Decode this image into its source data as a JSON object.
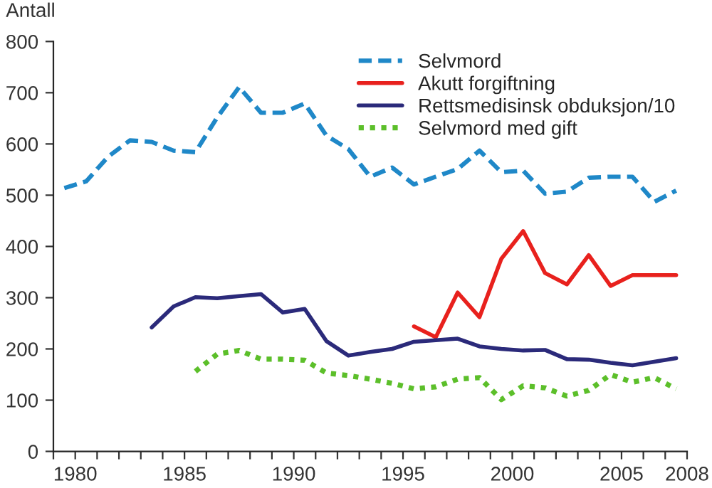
{
  "chart_data": {
    "type": "line",
    "ylabel": "Antall",
    "xlim": [
      1979,
      2008
    ],
    "ylim": [
      0,
      800
    ],
    "xticks": [
      {
        "value": 1979,
        "label": null
      },
      1980,
      {
        "value": 1981,
        "label": null
      },
      {
        "value": 1982,
        "label": null
      },
      {
        "value": 1983,
        "label": null
      },
      {
        "value": 1984,
        "label": null
      },
      1985,
      {
        "value": 1986,
        "label": null
      },
      {
        "value": 1987,
        "label": null
      },
      {
        "value": 1988,
        "label": null
      },
      {
        "value": 1989,
        "label": null
      },
      1990,
      {
        "value": 1991,
        "label": null
      },
      {
        "value": 1992,
        "label": null
      },
      {
        "value": 1993,
        "label": null
      },
      {
        "value": 1994,
        "label": null
      },
      1995,
      {
        "value": 1996,
        "label": null
      },
      {
        "value": 1997,
        "label": null
      },
      {
        "value": 1998,
        "label": null
      },
      {
        "value": 1999,
        "label": null
      },
      2000,
      {
        "value": 2001,
        "label": null
      },
      {
        "value": 2002,
        "label": null
      },
      {
        "value": 2003,
        "label": null
      },
      {
        "value": 2004,
        "label": null
      },
      2005,
      {
        "value": 2006,
        "label": null
      },
      {
        "value": 2007,
        "label": null
      },
      2008
    ],
    "yticks": [
      0,
      100,
      200,
      300,
      400,
      500,
      600,
      700,
      800
    ],
    "grid": false,
    "legend": "top right",
    "marker": "none",
    "series": [
      {
        "name": "Selvmord",
        "color": "#1f88c8",
        "line_style": "dashed",
        "x": [
          1979.5,
          1980.5,
          1981.5,
          1982.5,
          1983.5,
          1984.5,
          1985.5,
          1986.5,
          1987.5,
          1988.5,
          1989.5,
          1990.5,
          1991.5,
          1992.5,
          1993.5,
          1994.5,
          1995.5,
          1996.5,
          1997.5,
          1998.5,
          1999.5,
          2000.5,
          2001.5,
          2002.5,
          2003.5,
          2004.5,
          2005.5,
          2006.5,
          2007.5
        ],
        "values": [
          514,
          527,
          575,
          607,
          604,
          587,
          584,
          652,
          711,
          661,
          661,
          679,
          616,
          590,
          536,
          554,
          521,
          536,
          551,
          587,
          545,
          548,
          503,
          507,
          534,
          536,
          536,
          487,
          509
        ]
      },
      {
        "name": "Akutt forgiftning",
        "color": "#e8211d",
        "line_style": "solid",
        "x": [
          1995.5,
          1996.5,
          1997.5,
          1998.5,
          1999.5,
          2000.5,
          2001.5,
          2002.5,
          2003.5,
          2004.5,
          2005.5,
          2006.5,
          2007.5
        ],
        "values": [
          244,
          223,
          310,
          262,
          376,
          430,
          348,
          326,
          383,
          323,
          344,
          344,
          344
        ]
      },
      {
        "name": "Rettsmedisinsk obduksjon/10",
        "color": "#2b2a7a",
        "line_style": "solid",
        "x": [
          1983.5,
          1984.5,
          1985.5,
          1986.5,
          1987.5,
          1988.5,
          1989.5,
          1990.5,
          1991.5,
          1992.5,
          1993.5,
          1994.5,
          1995.5,
          1996.5,
          1997.5,
          1998.5,
          1999.5,
          2000.5,
          2001.5,
          2002.5,
          2003.5,
          2004.5,
          2005.5,
          2006.5,
          2007.5
        ],
        "values": [
          242,
          283,
          301,
          299,
          303,
          307,
          271,
          278,
          215,
          187,
          194,
          200,
          214,
          217,
          220,
          205,
          200,
          197,
          198,
          180,
          179,
          173,
          168,
          175,
          182
        ]
      },
      {
        "name": "Selvmord med gift",
        "color": "#5cbf2a",
        "line_style": "dotted",
        "x": [
          1985.5,
          1986.5,
          1987.5,
          1988.5,
          1989.5,
          1990.5,
          1991.5,
          1992.5,
          1993.5,
          1994.5,
          1995.5,
          1996.5,
          1997.5,
          1998.5,
          1999.5,
          2000.5,
          2001.5,
          2002.5,
          2003.5,
          2004.5,
          2005.5,
          2006.5,
          2007.5
        ],
        "values": [
          156,
          190,
          197,
          180,
          180,
          178,
          153,
          148,
          141,
          133,
          122,
          126,
          141,
          144,
          101,
          128,
          124,
          108,
          119,
          150,
          135,
          144,
          122
        ]
      }
    ]
  }
}
